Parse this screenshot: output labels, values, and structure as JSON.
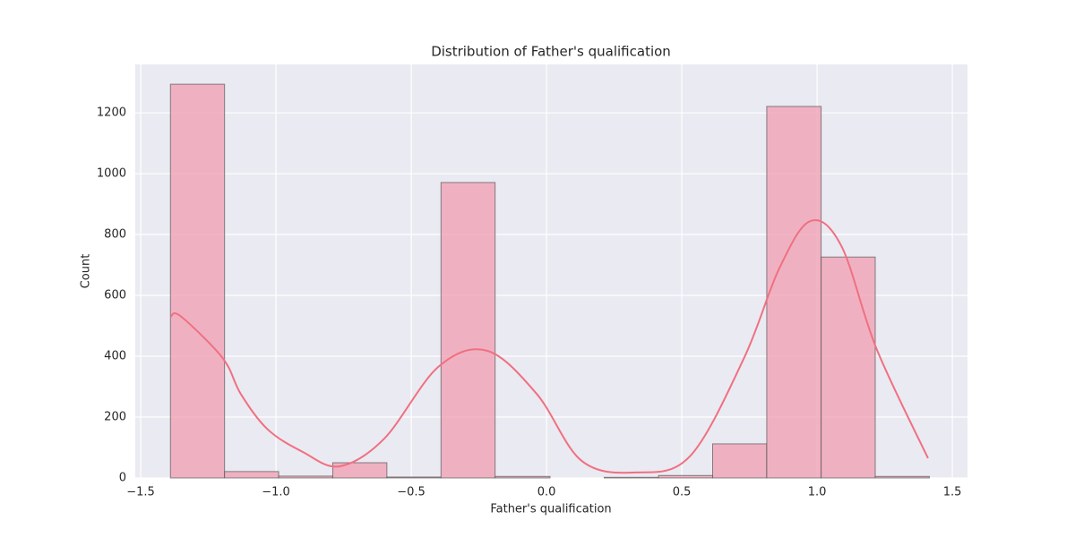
{
  "chart_data": {
    "type": "histogram",
    "title": "Distribution of Father's qualification",
    "x_label": "Father's qualification",
    "y_label": "Count",
    "bins": [
      -1.39,
      -1.19,
      -0.99,
      -0.79,
      -0.59,
      -0.39,
      -0.19,
      0.013,
      0.213,
      0.414,
      0.614,
      0.814,
      1.015,
      1.215,
      1.415
    ],
    "values": [
      1294,
      21,
      6,
      50,
      3,
      971,
      5,
      0,
      2,
      8,
      112,
      1221,
      726,
      5
    ],
    "color": "#f0a3b5",
    "edge_color": "#555555",
    "kde": {
      "color": "#f07080",
      "x": [
        -1.39,
        -1.353,
        -1.197,
        -1.13,
        -1.03,
        -0.9,
        -0.766,
        -0.6,
        -0.4,
        -0.22,
        -0.036,
        0.13,
        0.33,
        0.53,
        0.73,
        0.86,
        0.975,
        1.09,
        1.22,
        1.41
      ],
      "values": [
        529,
        532,
        394,
        276,
        159,
        85,
        38,
        129,
        365,
        418,
        276,
        56,
        18,
        71,
        394,
        688,
        844,
        762,
        424,
        65
      ]
    },
    "xlim": [
      -1.52,
      1.556
    ],
    "ylim": [
      0,
      1359
    ],
    "xticks": [
      {
        "value": -1.5,
        "label": "−1.5"
      },
      {
        "value": -1.0,
        "label": "−1.0"
      },
      {
        "value": -0.5,
        "label": "−0.5"
      },
      {
        "value": 0.0,
        "label": "0.0"
      },
      {
        "value": 0.5,
        "label": "0.5"
      },
      {
        "value": 1.0,
        "label": "1.0"
      },
      {
        "value": 1.5,
        "label": "1.5"
      }
    ],
    "yticks": [
      0,
      200,
      400,
      600,
      800,
      1000,
      1200
    ],
    "grid": true
  }
}
